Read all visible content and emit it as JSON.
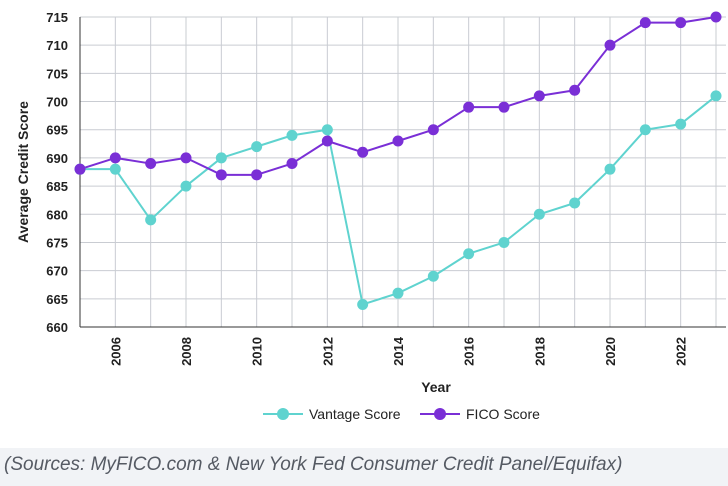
{
  "chart_data": {
    "type": "line",
    "xlabel": "Year",
    "ylabel": "Average Credit Score",
    "xlim": [
      2005,
      2023
    ],
    "ylim": [
      660,
      715
    ],
    "y_ticks": [
      "715",
      "710",
      "705",
      "700",
      "695",
      "690",
      "685",
      "680",
      "675",
      "670",
      "665",
      "660"
    ],
    "x_ticks": [
      "2006",
      "2008",
      "2010",
      "2012",
      "2014",
      "2016",
      "2018",
      "2020",
      "2022"
    ],
    "x": [
      2005,
      2006,
      2007,
      2008,
      2009,
      2010,
      2011,
      2012,
      2013,
      2014,
      2015,
      2016,
      2017,
      2018,
      2019,
      2020,
      2021,
      2022,
      2023
    ],
    "series": [
      {
        "name": "Vantage Score",
        "color": "#5fd3cf",
        "values": [
          688,
          688,
          679,
          685,
          690,
          692,
          694,
          695,
          664,
          666,
          669,
          673,
          675,
          680,
          682,
          688,
          695,
          696,
          701
        ]
      },
      {
        "name": "FICO Score",
        "color": "#7a2fd6",
        "values": [
          688,
          690,
          689,
          690,
          687,
          687,
          689,
          693,
          691,
          693,
          695,
          699,
          699,
          701,
          702,
          710,
          714,
          714,
          715
        ]
      }
    ],
    "grid": true,
    "legend_position": "bottom"
  },
  "source_note": "(Sources: MyFICO.com & New York Fed Consumer Credit Panel/Equifax)"
}
